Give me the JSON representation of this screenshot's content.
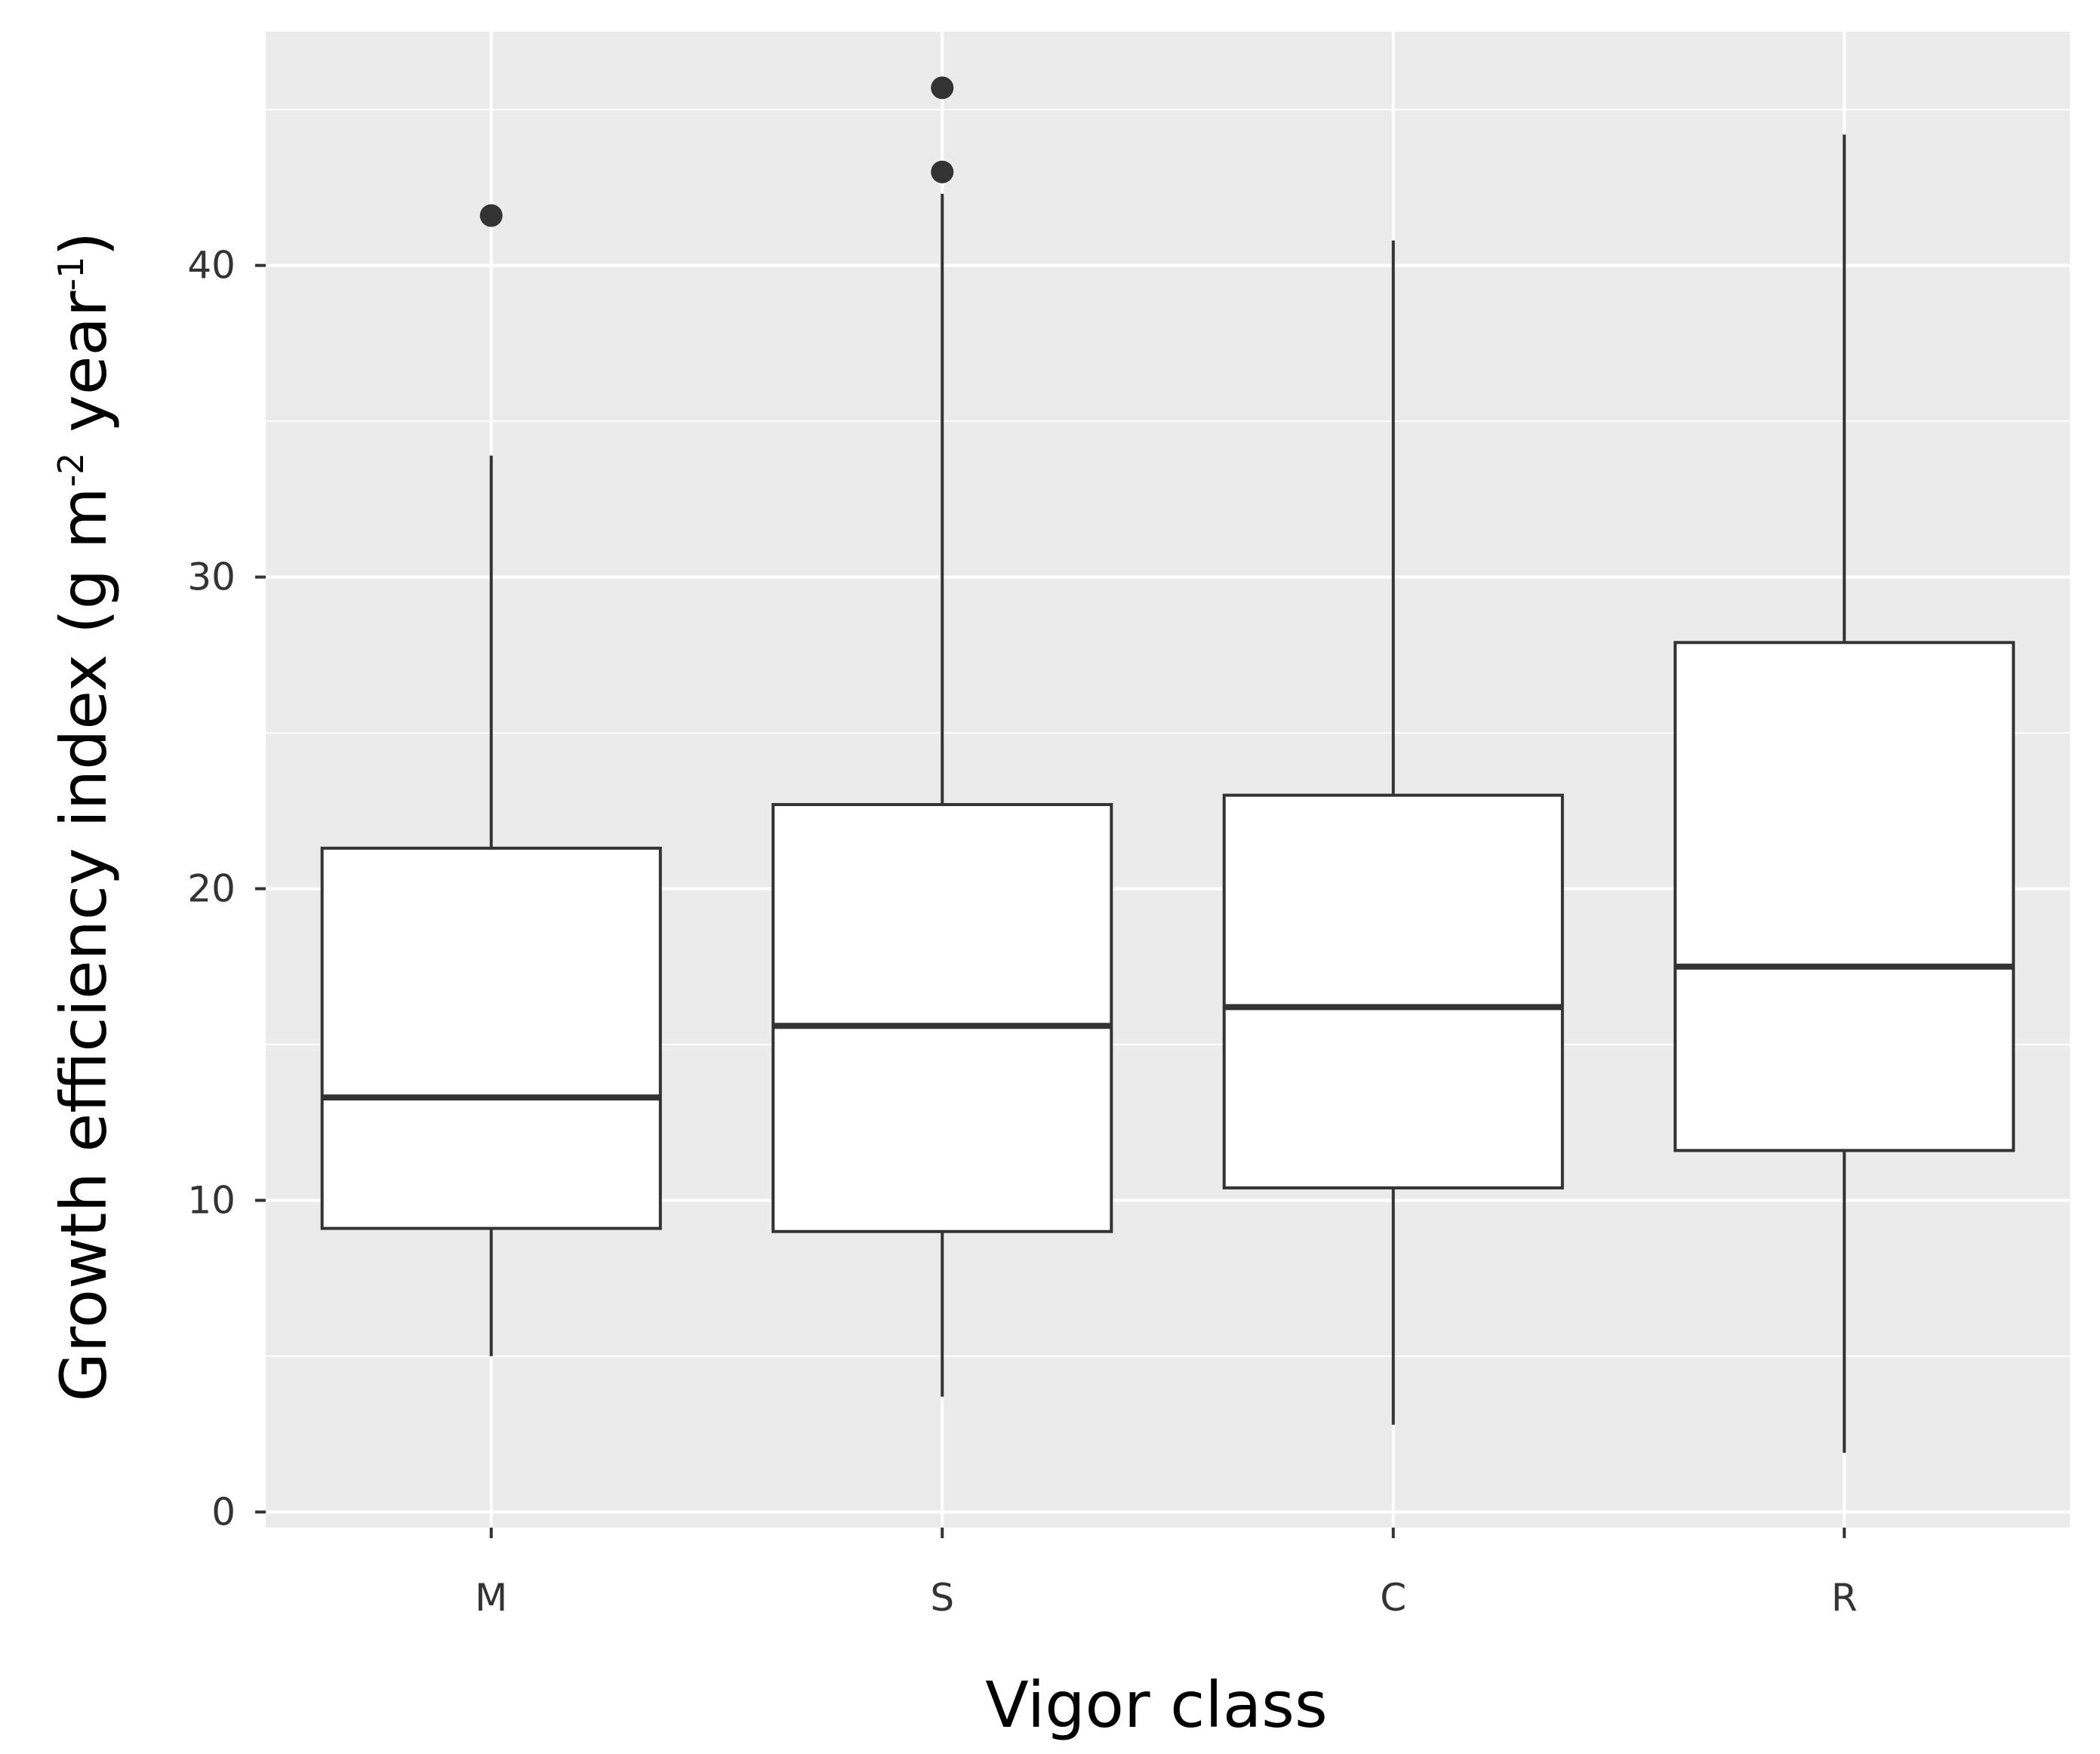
{
  "chart_data": {
    "type": "boxplot",
    "xlabel": "Vigor class",
    "ylabel_parts": [
      "Growth efficiency index (g m",
      "-2",
      " year",
      "-1",
      ")"
    ],
    "ylim": [
      -0.5,
      47.5
    ],
    "yticks": [
      0,
      10,
      20,
      30,
      40
    ],
    "ytick_labels": [
      "0",
      "10",
      "20",
      "30",
      "40"
    ],
    "grid": true,
    "background": "#ebebeb",
    "box_fill": "#ffffff",
    "line_color": "#333333",
    "categories": [
      "M",
      "S",
      "C",
      "R"
    ],
    "boxes": [
      {
        "category": "M",
        "whisker_low": 5.0,
        "q1": 9.1,
        "median": 13.3,
        "q3": 21.3,
        "whisker_high": 33.9,
        "outliers": [
          41.6
        ]
      },
      {
        "category": "S",
        "whisker_low": 3.7,
        "q1": 9.0,
        "median": 15.6,
        "q3": 22.7,
        "whisker_high": 42.3,
        "outliers": [
          43.0,
          45.7
        ]
      },
      {
        "category": "C",
        "whisker_low": 2.8,
        "q1": 10.4,
        "median": 16.2,
        "q3": 23.0,
        "whisker_high": 40.8,
        "outliers": []
      },
      {
        "category": "R",
        "whisker_low": 1.9,
        "q1": 11.6,
        "median": 17.5,
        "q3": 27.9,
        "whisker_high": 44.2,
        "outliers": []
      }
    ]
  }
}
